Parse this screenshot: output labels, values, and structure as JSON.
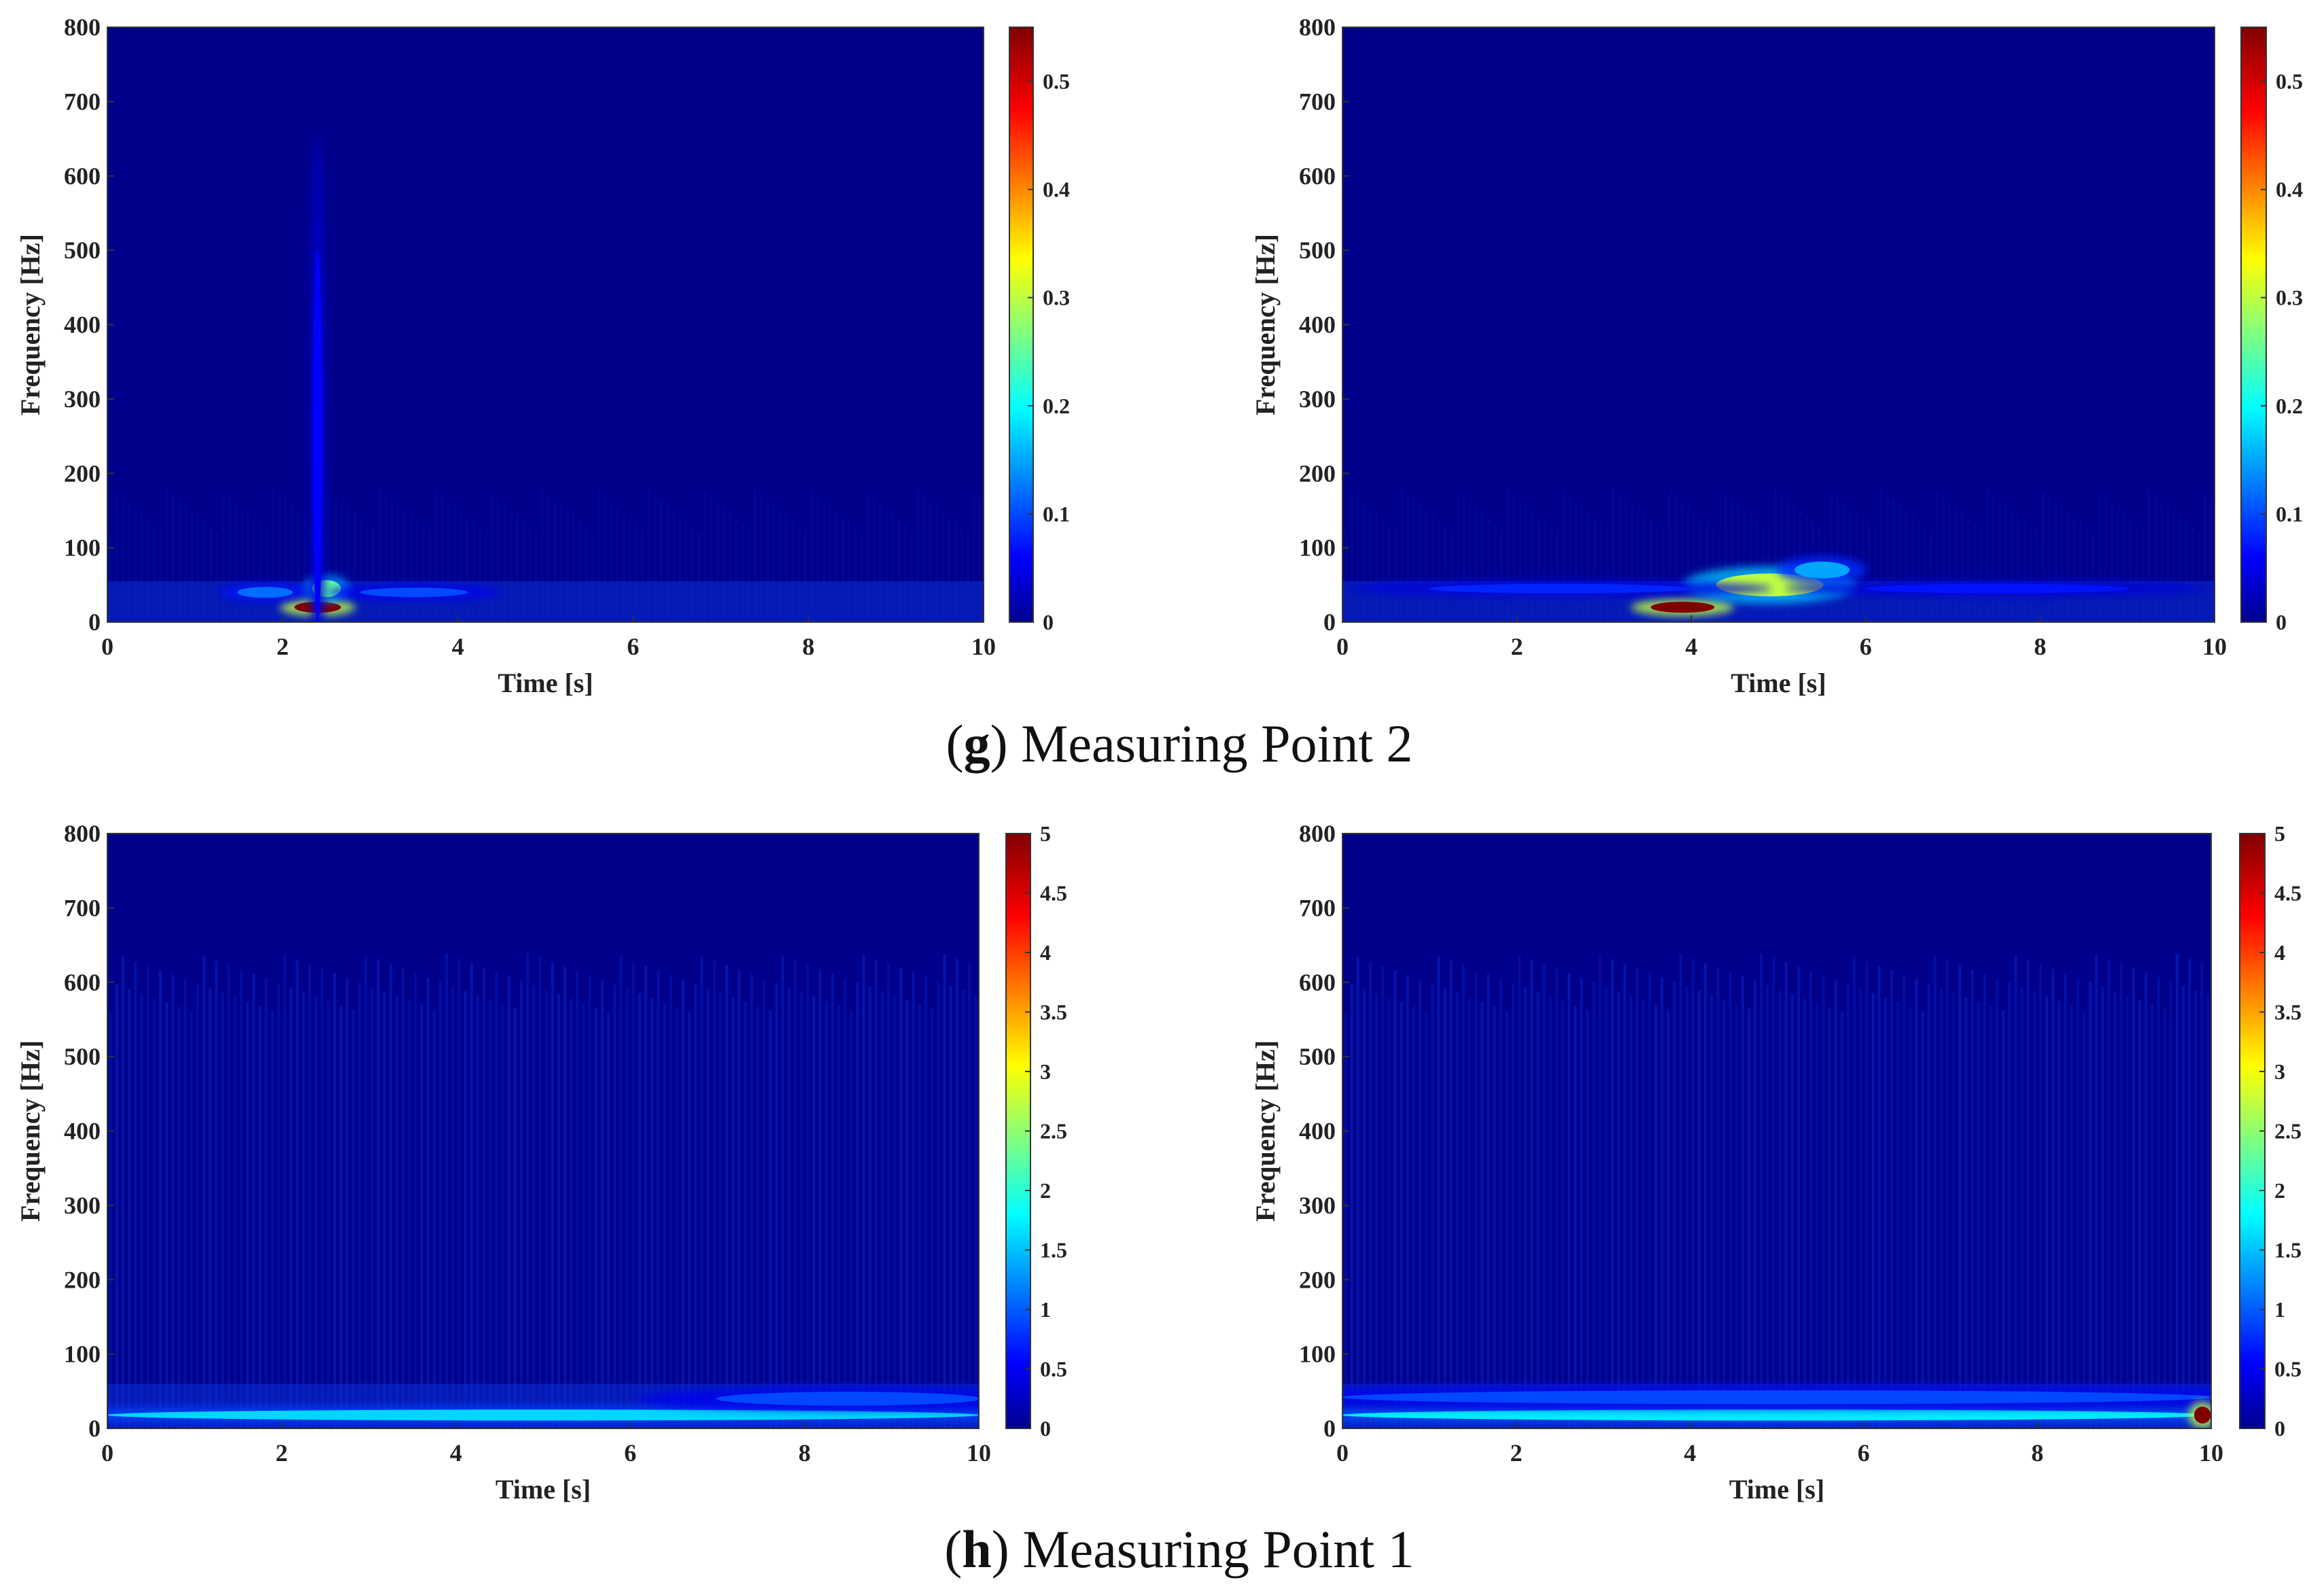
{
  "panels": [
    {
      "caption_letter": "g",
      "caption_text": ") Measuring Point 2",
      "caption_open": "(",
      "charts": [
        {
          "type": "heatmap",
          "xlabel": "Time [s]",
          "ylabel": "Frequency [Hz]",
          "xlim": [
            0,
            10
          ],
          "ylim": [
            0,
            800
          ],
          "x_ticks": [
            "0",
            "2",
            "4",
            "6",
            "8",
            "10"
          ],
          "y_ticks": [
            "0",
            "100",
            "200",
            "300",
            "400",
            "500",
            "600",
            "700",
            "800"
          ],
          "colorbar": {
            "range": [
              0,
              0.55
            ],
            "ticks": [
              "0",
              "0.1",
              "0.2",
              "0.3",
              "0.4",
              "0.5"
            ]
          },
          "features": [
            {
              "t": 2.4,
              "f": 20,
              "dt": 0.25,
              "df": 6,
              "value": 0.55
            },
            {
              "t": 2.5,
              "f": 45,
              "dt": 0.15,
              "df": 10,
              "value": 0.25
            },
            {
              "t": 1.8,
              "f": 40,
              "dt": 0.3,
              "df": 6,
              "value": 0.12
            },
            {
              "t": 2.4,
              "f": 250,
              "dt": 0.04,
              "df": 250,
              "value": 0.06
            },
            {
              "t": 3.5,
              "f": 40,
              "dt": 0.6,
              "df": 5,
              "value": 0.1
            }
          ]
        },
        {
          "type": "heatmap",
          "xlabel": "Time [s]",
          "ylabel": "Frequency [Hz]",
          "xlim": [
            0,
            10
          ],
          "ylim": [
            0,
            800
          ],
          "x_ticks": [
            "0",
            "2",
            "4",
            "6",
            "8",
            "10"
          ],
          "y_ticks": [
            "0",
            "100",
            "200",
            "300",
            "400",
            "500",
            "600",
            "700",
            "800"
          ],
          "colorbar": {
            "range": [
              0,
              0.55
            ],
            "ticks": [
              "0",
              "0.1",
              "0.2",
              "0.3",
              "0.4",
              "0.5"
            ]
          },
          "features": [
            {
              "t": 3.9,
              "f": 20,
              "dt": 0.35,
              "df": 6,
              "value": 0.55
            },
            {
              "t": 4.9,
              "f": 50,
              "dt": 0.6,
              "df": 14,
              "value": 0.3
            },
            {
              "t": 5.5,
              "f": 70,
              "dt": 0.3,
              "df": 10,
              "value": 0.15
            },
            {
              "t": 2.5,
              "f": 45,
              "dt": 1.5,
              "df": 5,
              "value": 0.08
            },
            {
              "t": 7.5,
              "f": 45,
              "dt": 1.5,
              "df": 5,
              "value": 0.07
            }
          ]
        }
      ]
    },
    {
      "caption_letter": "h",
      "caption_text": ") Measuring Point 1",
      "caption_open": "(",
      "charts": [
        {
          "type": "heatmap",
          "xlabel": "Time [s]",
          "ylabel": "Frequency [Hz]",
          "xlim": [
            0,
            10
          ],
          "ylim": [
            0,
            800
          ],
          "x_ticks": [
            "0",
            "2",
            "4",
            "6",
            "8",
            "10"
          ],
          "y_ticks": [
            "0",
            "100",
            "200",
            "300",
            "400",
            "500",
            "600",
            "700",
            "800"
          ],
          "colorbar": {
            "range": [
              0,
              5
            ],
            "ticks": [
              "0",
              "0.5",
              "1",
              "1.5",
              "2",
              "2.5",
              "3",
              "3.5",
              "4",
              "4.5",
              "5"
            ]
          },
          "features": [
            {
              "t": 5,
              "f": 18,
              "dt": 5,
              "df": 6,
              "value": 1.6
            },
            {
              "t": 8.5,
              "f": 40,
              "dt": 1.5,
              "df": 8,
              "value": 0.9
            }
          ]
        },
        {
          "type": "heatmap",
          "xlabel": "Time [s]",
          "ylabel": "Frequency [Hz]",
          "xlim": [
            0,
            10
          ],
          "ylim": [
            0,
            800
          ],
          "x_ticks": [
            "0",
            "2",
            "4",
            "6",
            "8",
            "10"
          ],
          "y_ticks": [
            "0",
            "100",
            "200",
            "300",
            "400",
            "500",
            "600",
            "700",
            "800"
          ],
          "colorbar": {
            "range": [
              0,
              5
            ],
            "ticks": [
              "0",
              "0.5",
              "1",
              "1.5",
              "2",
              "2.5",
              "3",
              "3.5",
              "4",
              "4.5",
              "5"
            ]
          },
          "features": [
            {
              "t": 5,
              "f": 18,
              "dt": 5,
              "df": 6,
              "value": 1.7
            },
            {
              "t": 5,
              "f": 42,
              "dt": 5,
              "df": 8,
              "value": 0.9
            },
            {
              "t": 9.9,
              "f": 18,
              "dt": 0.08,
              "df": 10,
              "value": 5
            }
          ]
        }
      ]
    }
  ],
  "chart_data": [
    {
      "type": "heatmap",
      "panel": "g",
      "xlabel": "Time [s]",
      "ylabel": "Frequency [Hz]",
      "xlim": [
        0,
        10
      ],
      "ylim": [
        0,
        800
      ],
      "colorbar_range": [
        0,
        0.55
      ]
    },
    {
      "type": "heatmap",
      "panel": "g",
      "xlabel": "Time [s]",
      "ylabel": "Frequency [Hz]",
      "xlim": [
        0,
        10
      ],
      "ylim": [
        0,
        800
      ],
      "colorbar_range": [
        0,
        0.55
      ]
    },
    {
      "type": "heatmap",
      "panel": "h",
      "xlabel": "Time [s]",
      "ylabel": "Frequency [Hz]",
      "xlim": [
        0,
        10
      ],
      "ylim": [
        0,
        800
      ],
      "colorbar_range": [
        0,
        5
      ]
    },
    {
      "type": "heatmap",
      "panel": "h",
      "xlabel": "Time [s]",
      "ylabel": "Frequency [Hz]",
      "xlim": [
        0,
        10
      ],
      "ylim": [
        0,
        800
      ],
      "colorbar_range": [
        0,
        5
      ]
    }
  ]
}
